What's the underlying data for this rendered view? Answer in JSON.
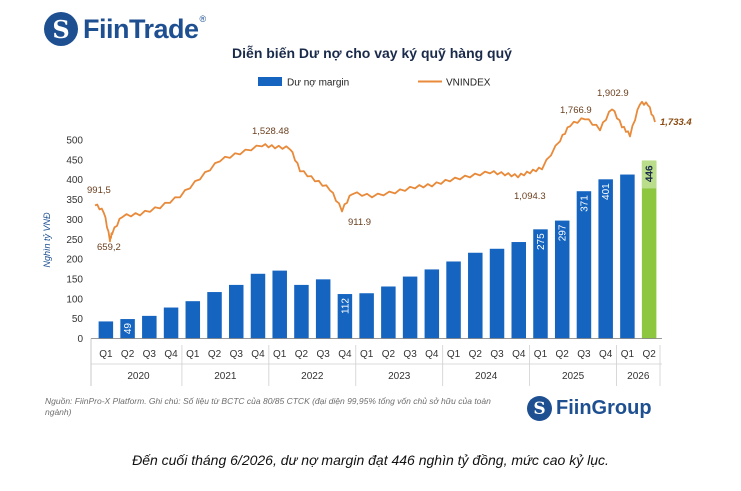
{
  "brand": {
    "logo_top": "FiinTrade",
    "logo_top_reg": "®",
    "logo_bottom": "FiinGroup",
    "logo_glyph": "S"
  },
  "colors": {
    "bar": "#1565c0",
    "bar_highlight": "#8dc63f",
    "line": "#e88a3a",
    "brand": "#1d4f91"
  },
  "chart_data": {
    "type": "bar",
    "title": "Diễn biến Dư nợ cho vay ký quỹ hàng quý",
    "ylabel": "Nghìn tỷ VNĐ",
    "ylim": [
      0,
      500
    ],
    "yticks": [
      0,
      50,
      100,
      150,
      200,
      250,
      300,
      350,
      400,
      450,
      500
    ],
    "grid": false,
    "legend_position": "top-center",
    "categories": [
      "Q1",
      "Q2",
      "Q3",
      "Q4",
      "Q1",
      "Q2",
      "Q3",
      "Q4",
      "Q1",
      "Q2",
      "Q3",
      "Q4",
      "Q1",
      "Q2",
      "Q3",
      "Q4",
      "Q1",
      "Q2",
      "Q3",
      "Q4",
      "Q1",
      "Q2",
      "Q3",
      "Q4",
      "Q1",
      "Q2"
    ],
    "years": [
      {
        "label": "2020",
        "count": 4
      },
      {
        "label": "2021",
        "count": 4
      },
      {
        "label": "2022",
        "count": 4
      },
      {
        "label": "2023",
        "count": 4
      },
      {
        "label": "2024",
        "count": 4
      },
      {
        "label": "2025",
        "count": 4
      },
      {
        "label": "2026",
        "count": 2
      }
    ],
    "series": [
      {
        "name": "Dư nợ margin",
        "type": "bar",
        "values": [
          43,
          49,
          57,
          78,
          94,
          117,
          135,
          163,
          171,
          135,
          149,
          112,
          114,
          131,
          156,
          174,
          194,
          216,
          226,
          243,
          275,
          297,
          371,
          401,
          413,
          446
        ],
        "data_labels": {
          "1": "49",
          "11": "112",
          "20": "275",
          "21": "297",
          "22": "371",
          "23": "401",
          "25": "446"
        }
      },
      {
        "name": "VNINDEX",
        "type": "line",
        "annotations": [
          {
            "text": "991,5",
            "value": 991.5
          },
          {
            "text": "659,2",
            "value": 659.2
          },
          {
            "text": "1,528.48",
            "value": 1528.48
          },
          {
            "text": "911.9",
            "value": 911.9
          },
          {
            "text": "1,094.3",
            "value": 1094.3
          },
          {
            "text": "1,766.9",
            "value": 1766.9
          },
          {
            "text": "1,902.9",
            "value": 1902.9
          },
          {
            "text": "1,733.4",
            "value": 1733.4
          }
        ]
      }
    ]
  },
  "footer": {
    "note": "Nguồn: FiinPro-X Platform. Ghi chú: Số liệu từ BCTC của 80/85 CTCK (đại diện 99,95% tổng vốn chủ sở hữu của toàn ngành)"
  },
  "caption": "Đến cuối tháng 6/2026, dư nợ margin đạt 446 nghìn tỷ đồng, mức cao kỷ lục."
}
